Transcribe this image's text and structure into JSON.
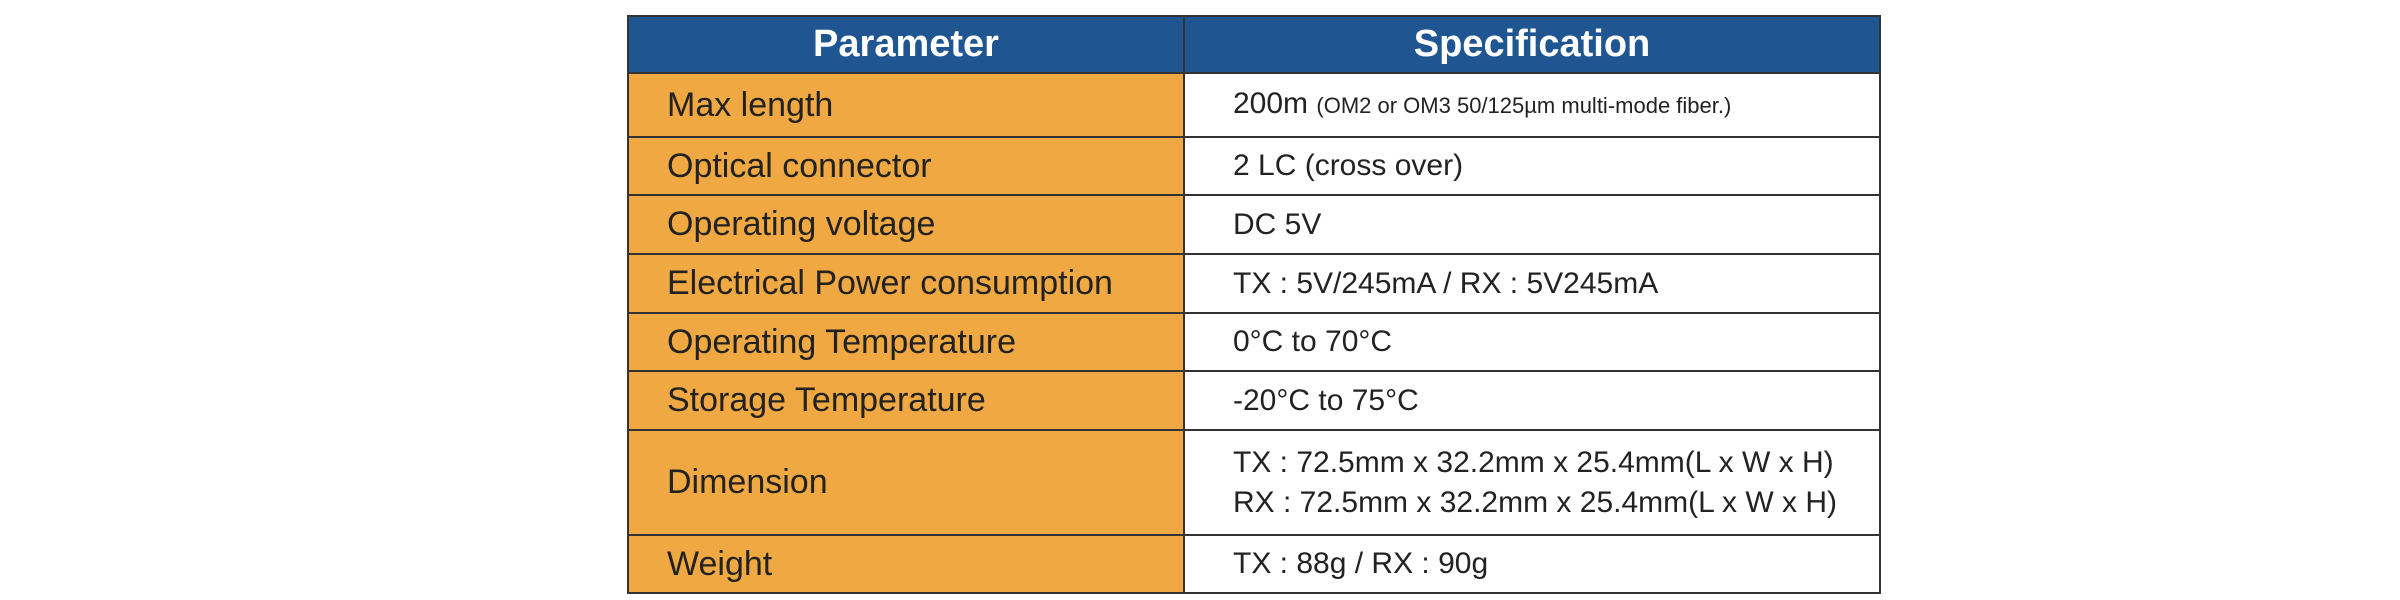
{
  "table": {
    "header": [
      "Parameter",
      "Specification"
    ],
    "rows": [
      {
        "parameter": "Max length",
        "specification": [
          "200m"
        ],
        "note": "(OM2 or OM3 50/125µm multi-mode fiber.)"
      },
      {
        "parameter": "Optical connector",
        "specification": [
          "2 LC (cross over)"
        ]
      },
      {
        "parameter": "Operating voltage",
        "specification": [
          "DC 5V"
        ]
      },
      {
        "parameter": "Electrical Power consumption",
        "specification": [
          "TX : 5V/245mA / RX : 5V245mA"
        ]
      },
      {
        "parameter": "Operating Temperature",
        "specification": [
          "0°C to 70°C"
        ]
      },
      {
        "parameter": "Storage Temperature",
        "specification": [
          "-20°C to 75°C"
        ]
      },
      {
        "parameter": "Dimension",
        "specification": [
          "TX : 72.5mm x 32.2mm x 25.4mm(L x W x H)",
          "RX : 72.5mm x 32.2mm x 25.4mm(L x W x H)"
        ]
      },
      {
        "parameter": "Weight",
        "specification": [
          "TX : 88g / RX : 90g"
        ]
      }
    ]
  }
}
